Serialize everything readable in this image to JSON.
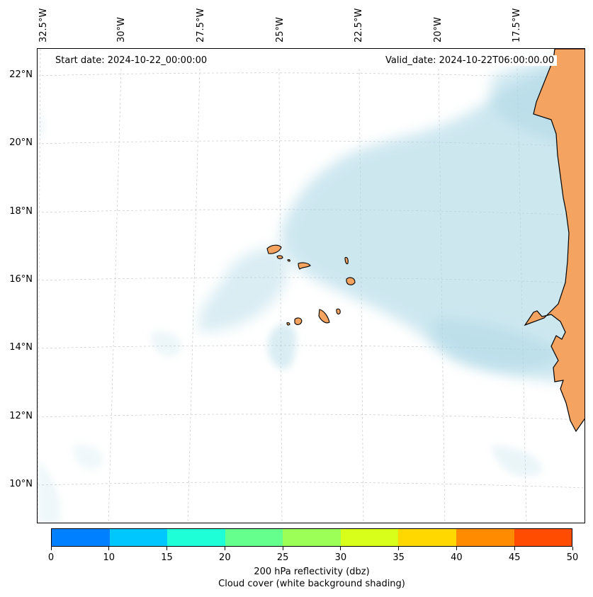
{
  "annotations": {
    "start_date": "Start date: 2024-10-22_00:00:00",
    "valid_date": "Valid_date: 2024-10-22T06:00:00.00"
  },
  "longitude_labels": [
    "32.5°W",
    "30°W",
    "27.5°W",
    "25°W",
    "22.5°W",
    "20°W",
    "17.5°W"
  ],
  "latitude_labels": [
    "22°N",
    "20°N",
    "18°N",
    "16°N",
    "14°N",
    "12°N",
    "10°N"
  ],
  "colorbar": {
    "colors": [
      "#0080ff",
      "#00c8ff",
      "#1effd8",
      "#64ff8c",
      "#9cff58",
      "#d8ff1a",
      "#ffd800",
      "#ff8c00",
      "#ff4c00"
    ],
    "tick_labels": [
      "0",
      "10",
      "15",
      "20",
      "25",
      "30",
      "35",
      "40",
      "45",
      "50"
    ],
    "title_line1": "200 hPa reflectivity (dbz)",
    "title_line2": "Cloud cover (white background shading)"
  },
  "map_colors": {
    "land": "#f4a460",
    "cloud": "#add8e6",
    "coastline": "#000000",
    "gridline": "#c8c8c8"
  }
}
